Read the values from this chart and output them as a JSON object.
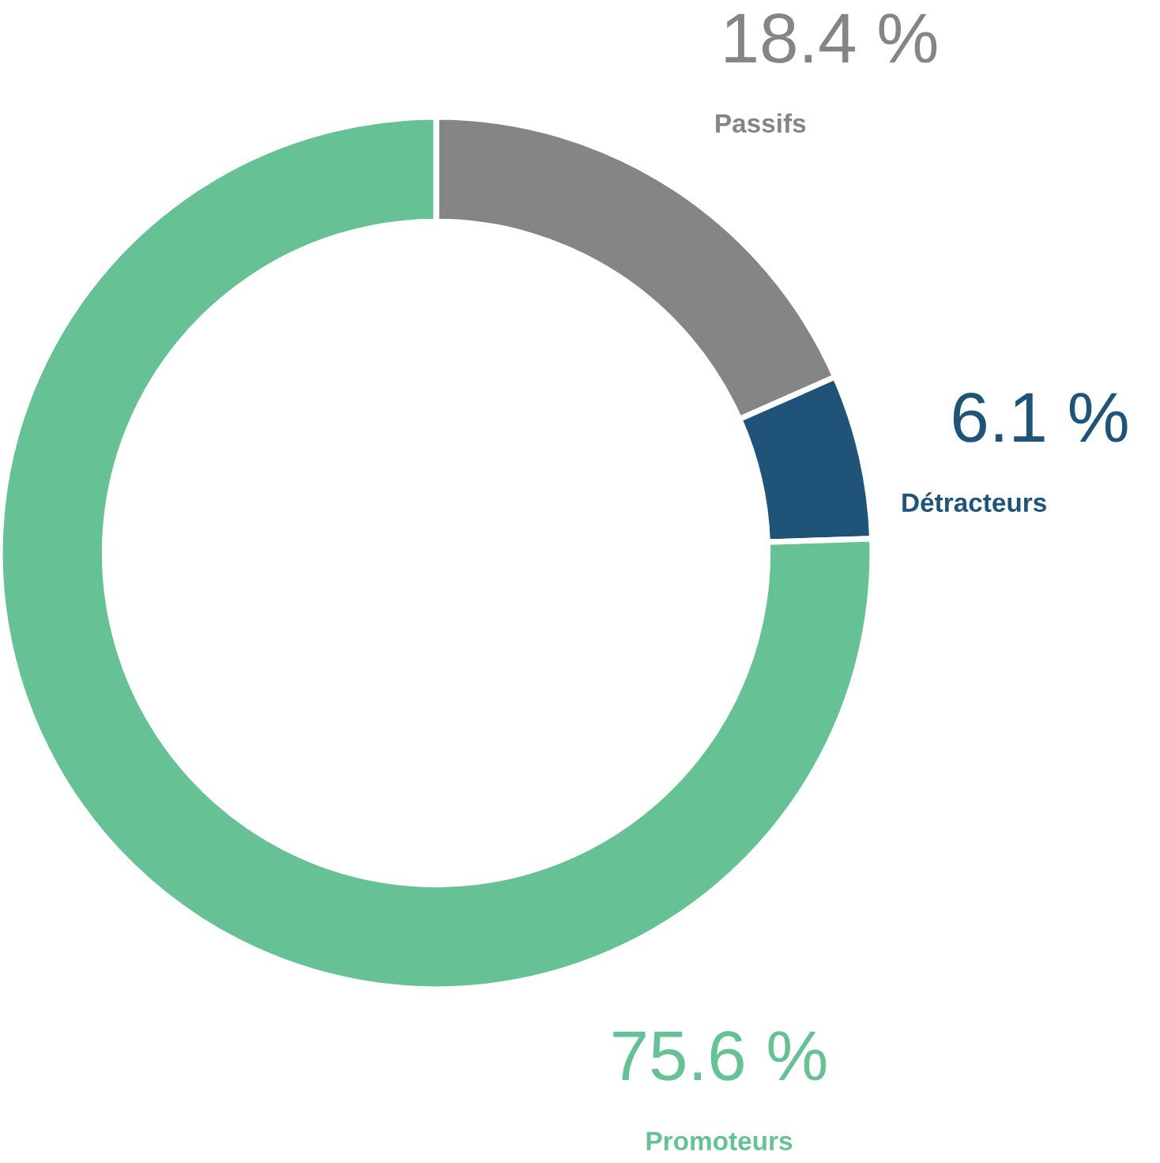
{
  "chart_data": {
    "type": "donut",
    "categories": [
      "Passifs",
      "Détracteurs",
      "Promoteurs"
    ],
    "values": [
      18.4,
      6.1,
      75.6
    ],
    "colors": [
      "#858585",
      "#1f5378",
      "#66c194"
    ],
    "value_labels": [
      "18.4 %",
      "6.1 %",
      "75.6 %"
    ],
    "legend": false
  }
}
